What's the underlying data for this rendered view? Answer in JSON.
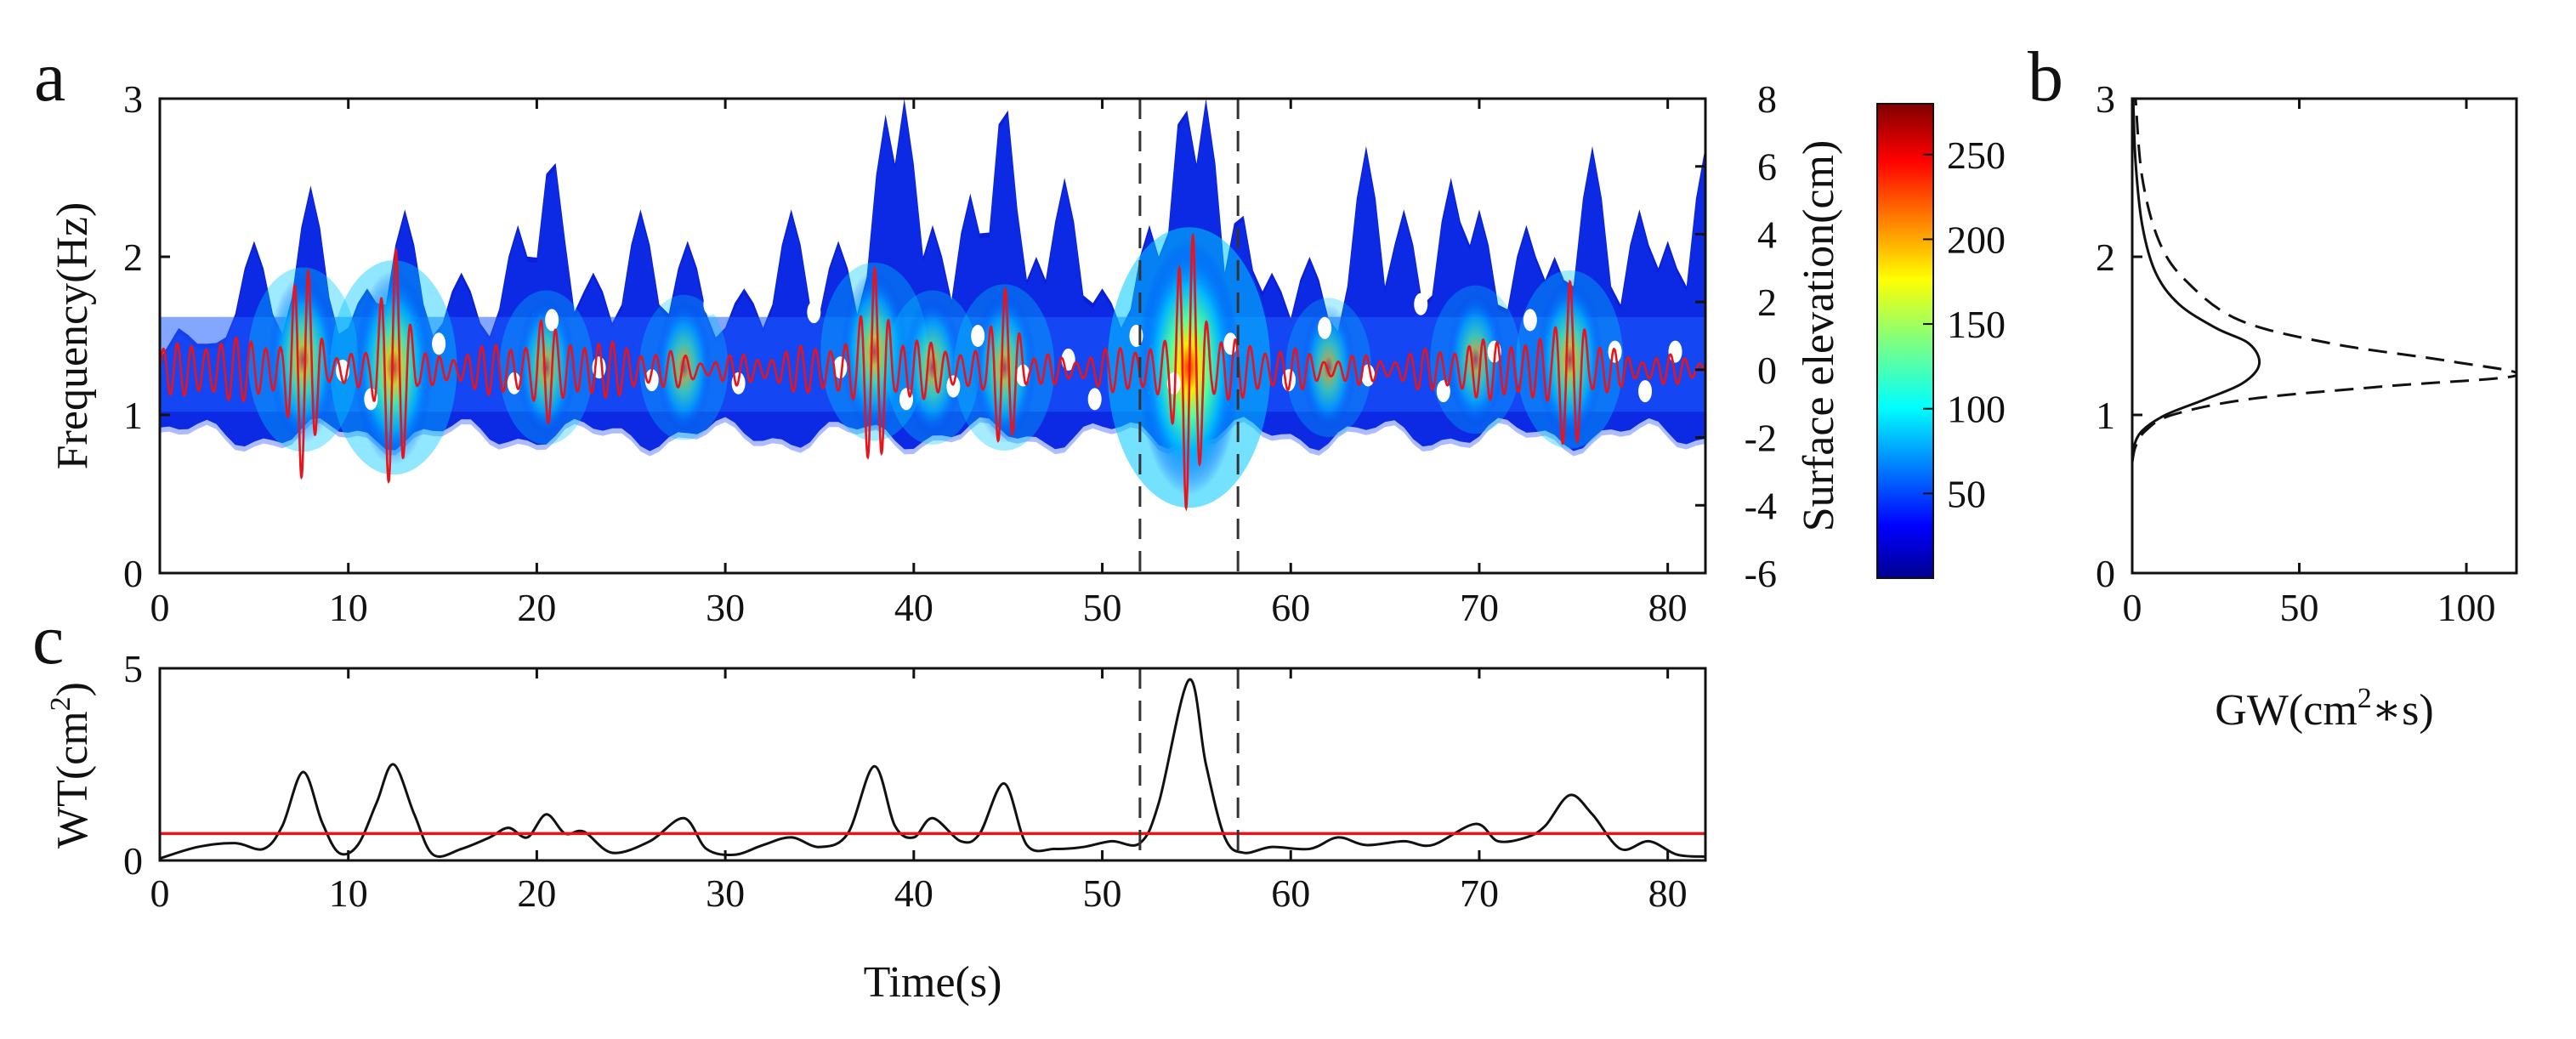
{
  "chart_data": [
    {
      "panel": "a",
      "type": "heatmap",
      "xlabel": "",
      "ylabel": "Frequency(Hz)",
      "y2label": "Surface elevation(cm)",
      "xlim": [
        0,
        82
      ],
      "ylim": [
        0,
        3
      ],
      "y2lim": [
        -6,
        8
      ],
      "xticks": [
        0,
        10,
        20,
        30,
        40,
        50,
        60,
        70,
        80
      ],
      "yticks": [
        0,
        1,
        2,
        3
      ],
      "y2ticks": [
        -6,
        -4,
        -2,
        0,
        2,
        4,
        6,
        8
      ],
      "colorbar": {
        "ticks": [
          50,
          100,
          150,
          200,
          250
        ],
        "min": 0,
        "max": 280
      },
      "vertical_dashed_lines_x": [
        52,
        57.2
      ],
      "energy_bursts": [
        {
          "t": 7.6,
          "f": 1.35,
          "peak": 120
        },
        {
          "t": 12.4,
          "f": 1.3,
          "peak": 170
        },
        {
          "t": 20.5,
          "f": 1.3,
          "peak": 70
        },
        {
          "t": 27.8,
          "f": 1.3,
          "peak": 55
        },
        {
          "t": 37.9,
          "f": 1.4,
          "peak": 110
        },
        {
          "t": 41.0,
          "f": 1.3,
          "peak": 70
        },
        {
          "t": 44.8,
          "f": 1.3,
          "peak": 90
        },
        {
          "t": 54.6,
          "f": 1.3,
          "peak": 280
        },
        {
          "t": 62.0,
          "f": 1.3,
          "peak": 45
        },
        {
          "t": 69.8,
          "f": 1.35,
          "peak": 60
        },
        {
          "t": 74.8,
          "f": 1.35,
          "peak": 110
        }
      ],
      "surface_elevation_envelope": [
        {
          "t": 7.6,
          "amp": 3.2
        },
        {
          "t": 12.4,
          "amp": 3.6
        },
        {
          "t": 20.5,
          "amp": 1.6
        },
        {
          "t": 37.9,
          "amp": 3.0
        },
        {
          "t": 44.8,
          "amp": 2.4
        },
        {
          "t": 54.6,
          "amp": 4.2
        },
        {
          "t": 74.8,
          "amp": 2.6
        }
      ],
      "colors": {
        "signal": "#e8141c",
        "dashed": "#333333"
      }
    },
    {
      "panel": "b",
      "type": "line",
      "xlabel_prefix": "GW(cm",
      "xlabel_sup": "2",
      "xlabel_suffix": "∗s)",
      "ylabel": "",
      "xlim": [
        0,
        115
      ],
      "ylim": [
        0,
        3
      ],
      "xticks": [
        0,
        50,
        100
      ],
      "yticks": [
        0,
        1,
        2,
        3
      ],
      "series": [
        {
          "style": "solid",
          "x": [
            0,
            0.5,
            3,
            10,
            22,
            33,
            38,
            35,
            25,
            14,
            7,
            3,
            1,
            0.3
          ],
          "y": [
            0.7,
            0.8,
            0.9,
            1.0,
            1.1,
            1.2,
            1.32,
            1.45,
            1.55,
            1.7,
            1.9,
            2.2,
            2.6,
            3.0
          ]
        },
        {
          "style": "dashed",
          "x": [
            0,
            1,
            4,
            12,
            35,
            75,
            115,
            95,
            60,
            32,
            16,
            8,
            3,
            1
          ],
          "y": [
            0.7,
            0.8,
            0.9,
            1.0,
            1.1,
            1.18,
            1.25,
            1.34,
            1.45,
            1.6,
            1.85,
            2.1,
            2.5,
            3.0
          ]
        }
      ]
    },
    {
      "panel": "c",
      "type": "line",
      "xlabel": "Time(s)",
      "ylabel_prefix": "WT(cm",
      "ylabel_sup": "2",
      "ylabel_suffix": ")",
      "xlim": [
        0,
        82
      ],
      "ylim": [
        0,
        5
      ],
      "xticks": [
        0,
        10,
        20,
        30,
        40,
        50,
        60,
        70,
        80
      ],
      "yticks": [
        0,
        5
      ],
      "threshold": 0.7,
      "vertical_dashed_lines_x": [
        52,
        57.2
      ],
      "series": [
        {
          "style": "solid",
          "x": [
            0,
            2,
            4,
            5.5,
            6.5,
            7.6,
            8.6,
            9.5,
            10.5,
            11.5,
            12.4,
            13.5,
            14.5,
            16,
            17.5,
            18.5,
            19.5,
            20.5,
            21.5,
            22.5,
            24,
            26,
            27.8,
            29,
            30.5,
            32,
            33.5,
            35,
            36.5,
            37.9,
            39,
            40,
            41,
            42.5,
            43.5,
            44.8,
            46,
            47.5,
            49,
            50.5,
            52,
            53,
            54.6,
            55.5,
            56.5,
            57.5,
            59,
            61,
            62.5,
            64,
            66,
            67.5,
            69.8,
            71,
            72.5,
            73.5,
            74.8,
            76,
            77.5,
            79,
            80.5,
            82
          ],
          "y": [
            0.05,
            0.35,
            0.45,
            0.3,
            0.9,
            2.3,
            1.0,
            0.2,
            0.4,
            1.5,
            2.5,
            1.2,
            0.15,
            0.3,
            0.6,
            0.85,
            0.6,
            1.2,
            0.7,
            0.75,
            0.2,
            0.5,
            1.1,
            0.3,
            0.15,
            0.4,
            0.6,
            0.35,
            0.7,
            2.45,
            0.9,
            0.6,
            1.1,
            0.5,
            0.7,
            2.0,
            0.4,
            0.3,
            0.35,
            0.5,
            0.45,
            1.5,
            4.7,
            2.5,
            0.6,
            0.2,
            0.35,
            0.3,
            0.6,
            0.4,
            0.5,
            0.4,
            0.95,
            0.5,
            0.6,
            0.9,
            1.7,
            1.2,
            0.3,
            0.5,
            0.15,
            0.1
          ]
        }
      ],
      "colors": {
        "threshold": "#e8141c"
      }
    }
  ]
}
